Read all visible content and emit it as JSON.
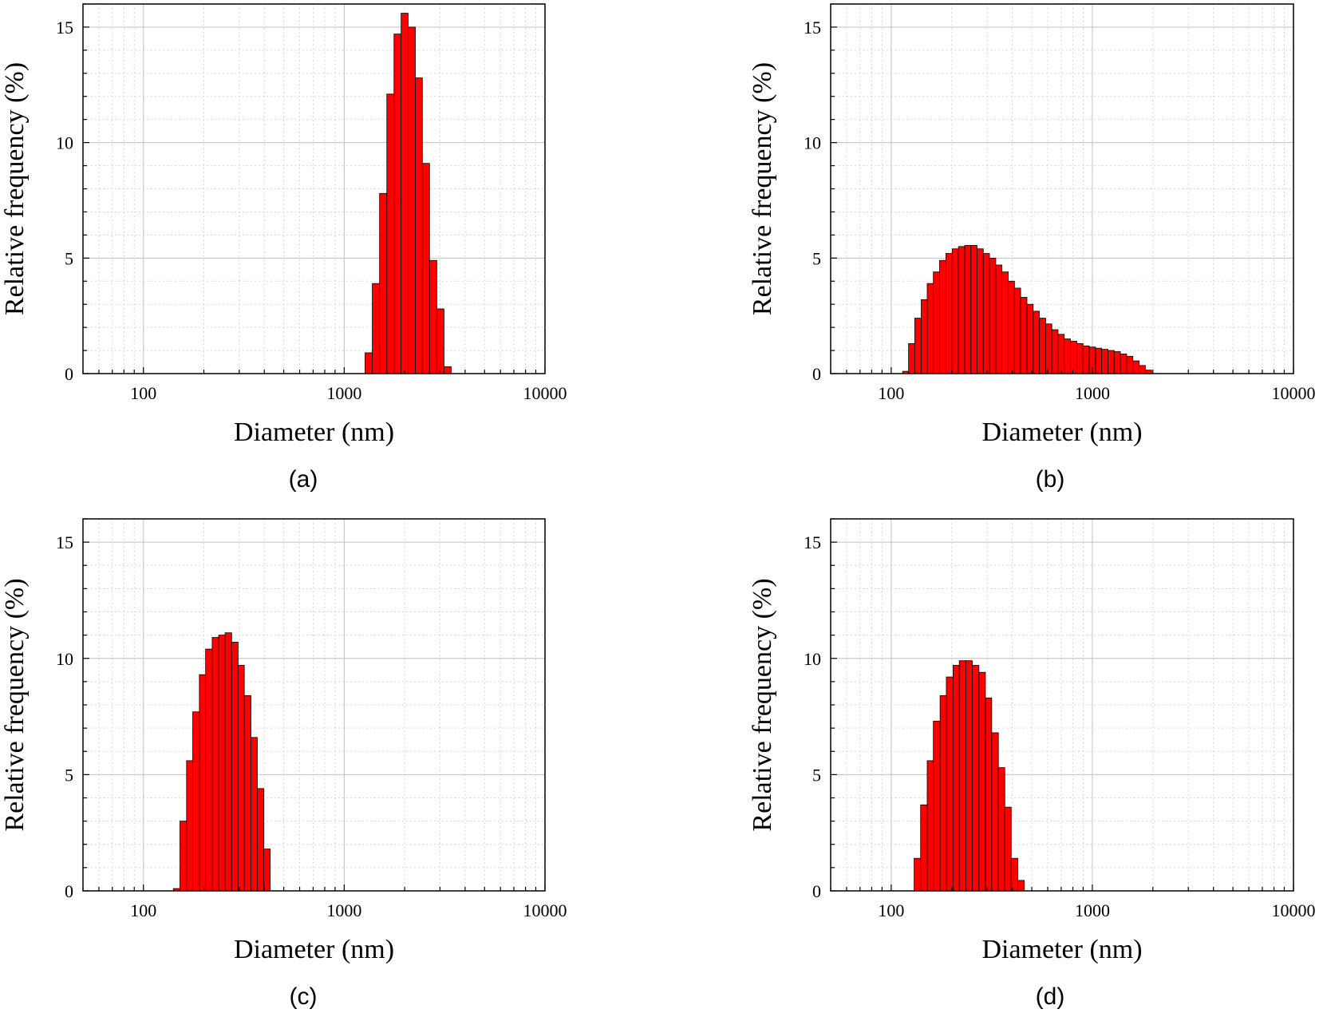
{
  "chart_data": [
    {
      "type": "bar",
      "panel_label": "(a)",
      "xlabel": "Diameter (nm)",
      "ylabel": "Relative frequency (%)",
      "x_scale": "log",
      "xlim": [
        50,
        10000
      ],
      "ylim": [
        0,
        16
      ],
      "x_ticks": [
        "100",
        "1000",
        "10000"
      ],
      "y_ticks": [
        "0",
        "5",
        "10",
        "15"
      ],
      "grid": true,
      "bar_color": "#ff0000",
      "bins": [
        {
          "x0": 1270,
          "x1": 1380,
          "value": 0.9
        },
        {
          "x0": 1380,
          "x1": 1500,
          "value": 3.9
        },
        {
          "x0": 1500,
          "x1": 1630,
          "value": 7.8
        },
        {
          "x0": 1630,
          "x1": 1770,
          "value": 12.1
        },
        {
          "x0": 1770,
          "x1": 1920,
          "value": 14.7
        },
        {
          "x0": 1920,
          "x1": 2080,
          "value": 15.6
        },
        {
          "x0": 2080,
          "x1": 2260,
          "value": 15.0
        },
        {
          "x0": 2260,
          "x1": 2450,
          "value": 12.8
        },
        {
          "x0": 2450,
          "x1": 2660,
          "value": 9.1
        },
        {
          "x0": 2660,
          "x1": 2890,
          "value": 4.9
        },
        {
          "x0": 2890,
          "x1": 3140,
          "value": 2.8
        },
        {
          "x0": 3140,
          "x1": 3410,
          "value": 0.3
        }
      ]
    },
    {
      "type": "bar",
      "panel_label": "(b)",
      "xlabel": "Diameter (nm)",
      "ylabel": "Relative frequency (%)",
      "x_scale": "log",
      "xlim": [
        50,
        10000
      ],
      "ylim": [
        0,
        16
      ],
      "x_ticks": [
        "100",
        "1000",
        "10000"
      ],
      "y_ticks": [
        "0",
        "5",
        "10",
        "15"
      ],
      "grid": true,
      "bar_color": "#ff0000",
      "bins": [
        {
          "x0": 114,
          "x1": 122,
          "value": 0.1
        },
        {
          "x0": 122,
          "x1": 131,
          "value": 1.3
        },
        {
          "x0": 131,
          "x1": 141,
          "value": 2.4
        },
        {
          "x0": 141,
          "x1": 151,
          "value": 3.2
        },
        {
          "x0": 151,
          "x1": 162,
          "value": 3.9
        },
        {
          "x0": 162,
          "x1": 174,
          "value": 4.4
        },
        {
          "x0": 174,
          "x1": 187,
          "value": 4.9
        },
        {
          "x0": 187,
          "x1": 201,
          "value": 5.2
        },
        {
          "x0": 201,
          "x1": 216,
          "value": 5.4
        },
        {
          "x0": 216,
          "x1": 232,
          "value": 5.5
        },
        {
          "x0": 232,
          "x1": 249,
          "value": 5.55
        },
        {
          "x0": 249,
          "x1": 267,
          "value": 5.55
        },
        {
          "x0": 267,
          "x1": 287,
          "value": 5.4
        },
        {
          "x0": 287,
          "x1": 308,
          "value": 5.2
        },
        {
          "x0": 308,
          "x1": 331,
          "value": 5.0
        },
        {
          "x0": 331,
          "x1": 355,
          "value": 4.7
        },
        {
          "x0": 355,
          "x1": 382,
          "value": 4.4
        },
        {
          "x0": 382,
          "x1": 410,
          "value": 4.0
        },
        {
          "x0": 410,
          "x1": 440,
          "value": 3.7
        },
        {
          "x0": 440,
          "x1": 473,
          "value": 3.3
        },
        {
          "x0": 473,
          "x1": 508,
          "value": 3.0
        },
        {
          "x0": 508,
          "x1": 545,
          "value": 2.7
        },
        {
          "x0": 545,
          "x1": 586,
          "value": 2.4
        },
        {
          "x0": 586,
          "x1": 629,
          "value": 2.15
        },
        {
          "x0": 629,
          "x1": 675,
          "value": 1.9
        },
        {
          "x0": 675,
          "x1": 725,
          "value": 1.7
        },
        {
          "x0": 725,
          "x1": 779,
          "value": 1.5
        },
        {
          "x0": 779,
          "x1": 837,
          "value": 1.4
        },
        {
          "x0": 837,
          "x1": 899,
          "value": 1.3
        },
        {
          "x0": 899,
          "x1": 965,
          "value": 1.2
        },
        {
          "x0": 965,
          "x1": 1037,
          "value": 1.15
        },
        {
          "x0": 1037,
          "x1": 1113,
          "value": 1.1
        },
        {
          "x0": 1113,
          "x1": 1196,
          "value": 1.05
        },
        {
          "x0": 1196,
          "x1": 1284,
          "value": 1.0
        },
        {
          "x0": 1284,
          "x1": 1379,
          "value": 0.95
        },
        {
          "x0": 1379,
          "x1": 1481,
          "value": 0.85
        },
        {
          "x0": 1481,
          "x1": 1591,
          "value": 0.75
        },
        {
          "x0": 1591,
          "x1": 1709,
          "value": 0.55
        },
        {
          "x0": 1709,
          "x1": 1835,
          "value": 0.35
        },
        {
          "x0": 1835,
          "x1": 1971,
          "value": 0.15
        }
      ]
    },
    {
      "type": "bar",
      "panel_label": "(c)",
      "xlabel": "Diameter (nm)",
      "ylabel": "Relative frequency (%)",
      "x_scale": "log",
      "xlim": [
        50,
        10000
      ],
      "ylim": [
        0,
        16
      ],
      "x_ticks": [
        "100",
        "1000",
        "10000"
      ],
      "y_ticks": [
        "0",
        "5",
        "10",
        "15"
      ],
      "grid": true,
      "bar_color": "#ff0000",
      "bins": [
        {
          "x0": 141,
          "x1": 152,
          "value": 0.1
        },
        {
          "x0": 152,
          "x1": 164,
          "value": 3.0
        },
        {
          "x0": 164,
          "x1": 176,
          "value": 5.6
        },
        {
          "x0": 176,
          "x1": 190,
          "value": 7.7
        },
        {
          "x0": 190,
          "x1": 204,
          "value": 9.3
        },
        {
          "x0": 204,
          "x1": 220,
          "value": 10.4
        },
        {
          "x0": 220,
          "x1": 237,
          "value": 10.9
        },
        {
          "x0": 237,
          "x1": 255,
          "value": 11.0
        },
        {
          "x0": 255,
          "x1": 275,
          "value": 11.1
        },
        {
          "x0": 275,
          "x1": 296,
          "value": 10.7
        },
        {
          "x0": 296,
          "x1": 318,
          "value": 9.7
        },
        {
          "x0": 318,
          "x1": 343,
          "value": 8.4
        },
        {
          "x0": 343,
          "x1": 369,
          "value": 6.6
        },
        {
          "x0": 369,
          "x1": 398,
          "value": 4.4
        },
        {
          "x0": 398,
          "x1": 428,
          "value": 1.8
        }
      ]
    },
    {
      "type": "bar",
      "panel_label": "(d)",
      "xlabel": "Diameter (nm)",
      "ylabel": "Relative frequency (%)",
      "x_scale": "log",
      "xlim": [
        50,
        10000
      ],
      "ylim": [
        0,
        16
      ],
      "x_ticks": [
        "100",
        "1000",
        "10000"
      ],
      "y_ticks": [
        "0",
        "5",
        "10",
        "15"
      ],
      "grid": true,
      "bar_color": "#ff0000",
      "bins": [
        {
          "x0": 130,
          "x1": 140,
          "value": 1.4
        },
        {
          "x0": 140,
          "x1": 151,
          "value": 3.7
        },
        {
          "x0": 151,
          "x1": 162,
          "value": 5.6
        },
        {
          "x0": 162,
          "x1": 175,
          "value": 7.3
        },
        {
          "x0": 175,
          "x1": 188,
          "value": 8.4
        },
        {
          "x0": 188,
          "x1": 203,
          "value": 9.2
        },
        {
          "x0": 203,
          "x1": 218,
          "value": 9.7
        },
        {
          "x0": 218,
          "x1": 235,
          "value": 9.9
        },
        {
          "x0": 235,
          "x1": 253,
          "value": 9.9
        },
        {
          "x0": 253,
          "x1": 273,
          "value": 9.7
        },
        {
          "x0": 273,
          "x1": 294,
          "value": 9.4
        },
        {
          "x0": 294,
          "x1": 316,
          "value": 8.3
        },
        {
          "x0": 316,
          "x1": 341,
          "value": 6.8
        },
        {
          "x0": 341,
          "x1": 367,
          "value": 5.3
        },
        {
          "x0": 367,
          "x1": 395,
          "value": 3.6
        },
        {
          "x0": 395,
          "x1": 426,
          "value": 1.4
        },
        {
          "x0": 426,
          "x1": 459,
          "value": 0.45
        }
      ]
    }
  ]
}
